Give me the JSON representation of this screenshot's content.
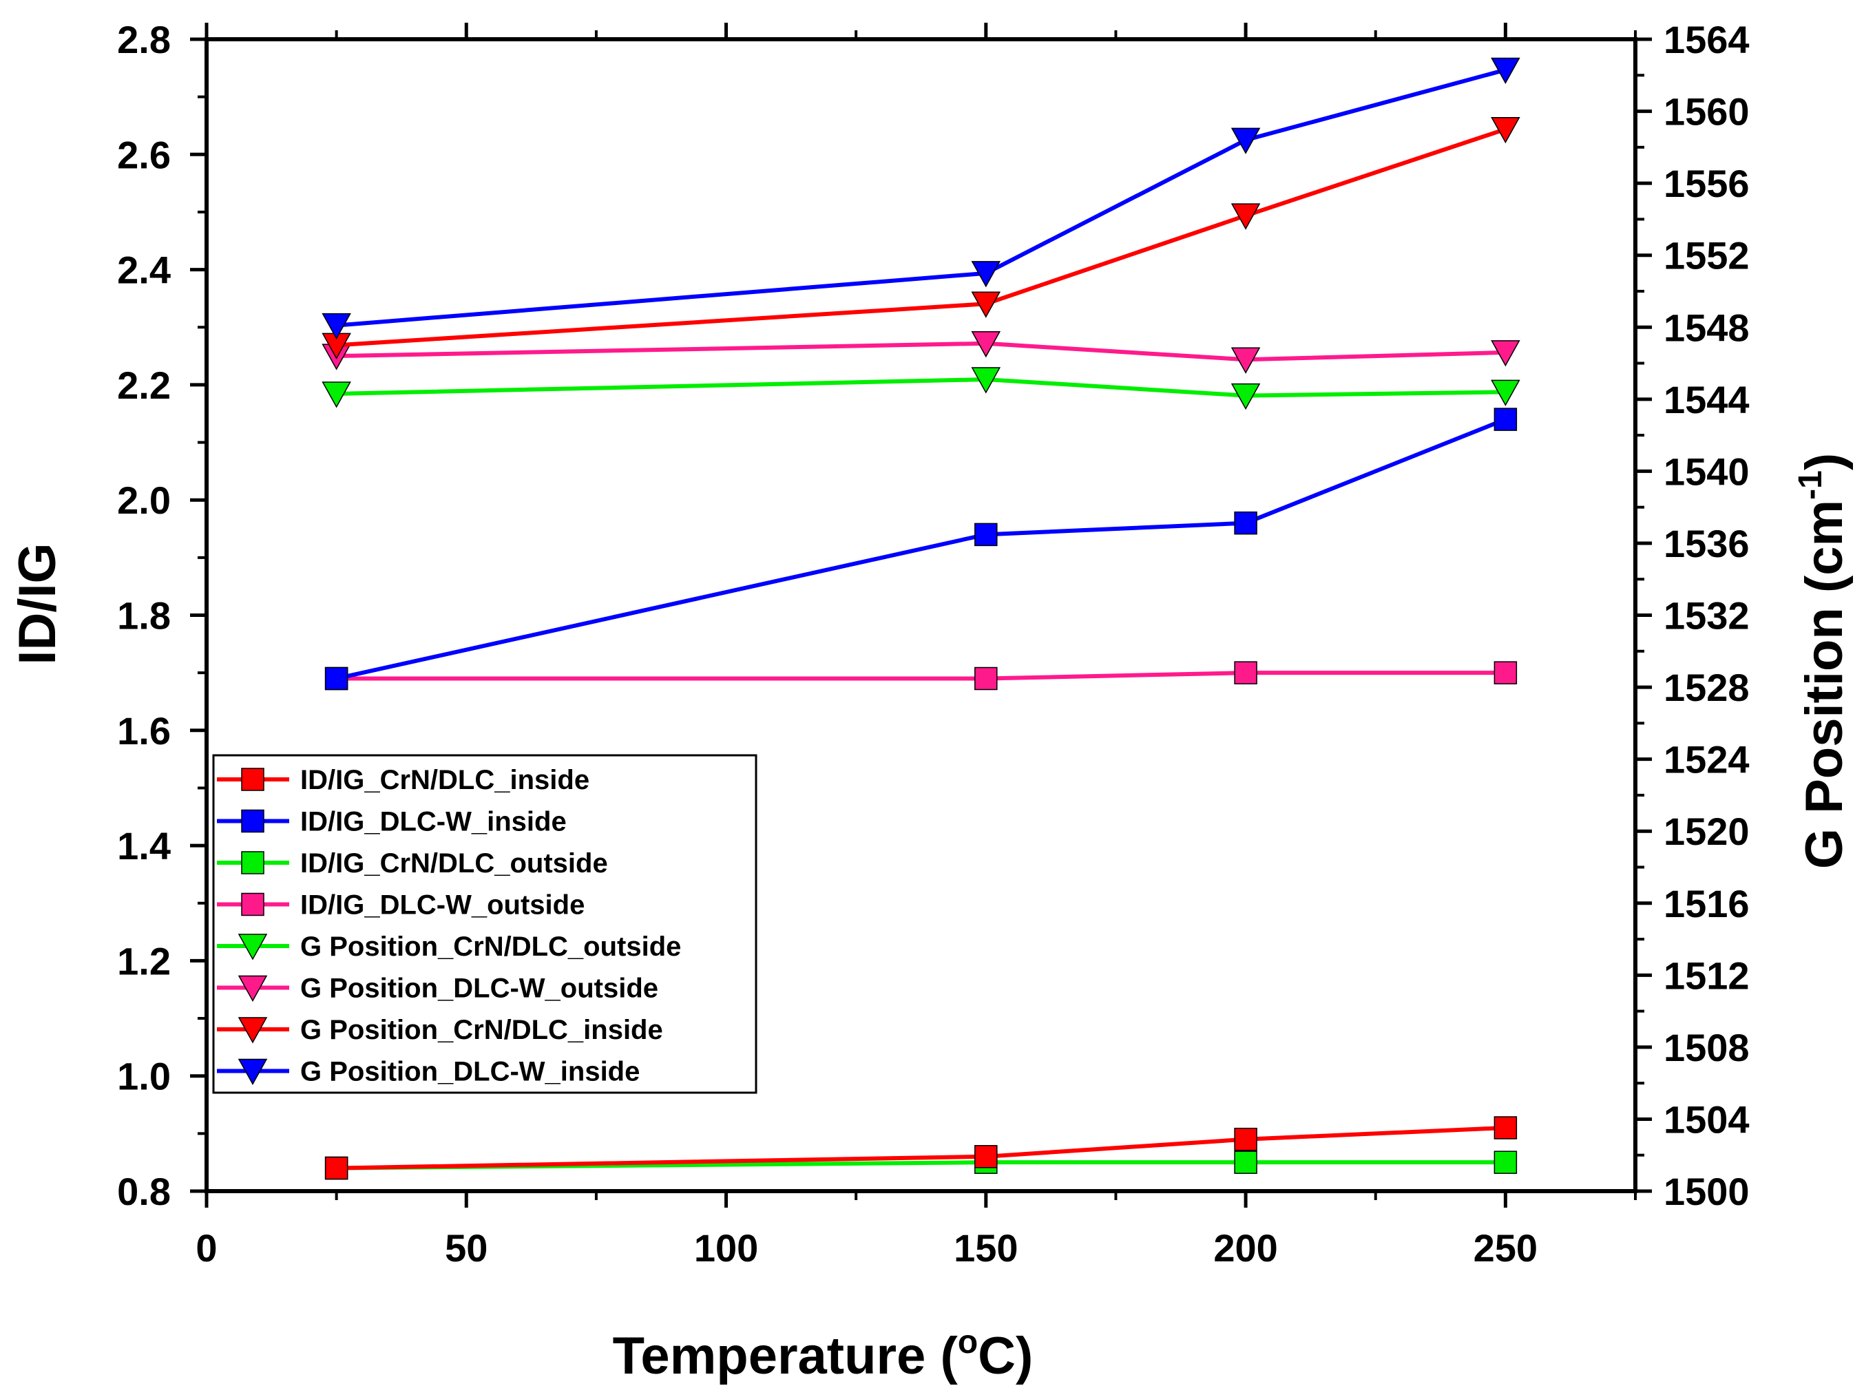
{
  "chart_data": {
    "type": "line",
    "xlabel": "Temperature (",
    "xlabel_sup": "o",
    "xlabel_tail": "C)",
    "ylabel_left": "ID/IG",
    "ylabel_right": "G Position (cm",
    "ylabel_right_sup": "-1",
    "ylabel_right_tail": ")",
    "xlim": [
      0,
      275
    ],
    "ylim_left": [
      0.8,
      2.8
    ],
    "ylim_right": [
      1500,
      1564
    ],
    "x_ticks": [
      0,
      50,
      100,
      150,
      200,
      250
    ],
    "y_left_ticks": [
      0.8,
      1.0,
      1.2,
      1.4,
      1.6,
      1.8,
      2.0,
      2.2,
      2.4,
      2.6,
      2.8
    ],
    "y_left_tick_labels": [
      "0.8",
      "1.0",
      "1.2",
      "1.4",
      "1.6",
      "1.8",
      "2.0",
      "2.2",
      "2.4",
      "2.6",
      "2.8"
    ],
    "y_right_ticks": [
      1500,
      1504,
      1508,
      1512,
      1516,
      1520,
      1524,
      1528,
      1532,
      1536,
      1540,
      1544,
      1548,
      1552,
      1556,
      1560,
      1564
    ],
    "x": [
      25,
      150,
      200,
      250
    ],
    "series": [
      {
        "name": "ID/IG_CrN/DLC_inside",
        "axis": "left",
        "marker": "square",
        "color": "#ff0000",
        "values": [
          0.84,
          0.86,
          0.89,
          0.91
        ]
      },
      {
        "name": "ID/IG_DLC-W_inside",
        "axis": "left",
        "marker": "square",
        "color": "#0000ff",
        "values": [
          1.69,
          1.94,
          1.96,
          2.14
        ]
      },
      {
        "name": "ID/IG_CrN/DLC_outside",
        "axis": "left",
        "marker": "square",
        "color": "#00ee00",
        "values": [
          0.84,
          0.85,
          0.85,
          0.85
        ]
      },
      {
        "name": "ID/IG_DLC-W_outside",
        "axis": "left",
        "marker": "square",
        "color": "#ff1a8c",
        "values": [
          1.69,
          1.69,
          1.7,
          1.7
        ]
      },
      {
        "name": "G Position_CrN/DLC_outside",
        "axis": "right",
        "marker": "triangle-down",
        "color": "#00ee00",
        "values": [
          1544.3,
          1545.1,
          1544.2,
          1544.4
        ]
      },
      {
        "name": "G Position_DLC-W_outside",
        "axis": "right",
        "marker": "triangle-down",
        "color": "#ff1a8c",
        "values": [
          1546.4,
          1547.1,
          1546.2,
          1546.6
        ]
      },
      {
        "name": "G Position_CrN/DLC_inside",
        "axis": "right",
        "marker": "triangle-down",
        "color": "#ff0000",
        "values": [
          1547.0,
          1549.3,
          1554.2,
          1559.0
        ]
      },
      {
        "name": "G Position_DLC-W_inside",
        "axis": "right",
        "marker": "triangle-down",
        "color": "#0000ff",
        "values": [
          1548.1,
          1551.0,
          1558.4,
          1562.3
        ]
      }
    ],
    "legend_position": "center-left"
  }
}
